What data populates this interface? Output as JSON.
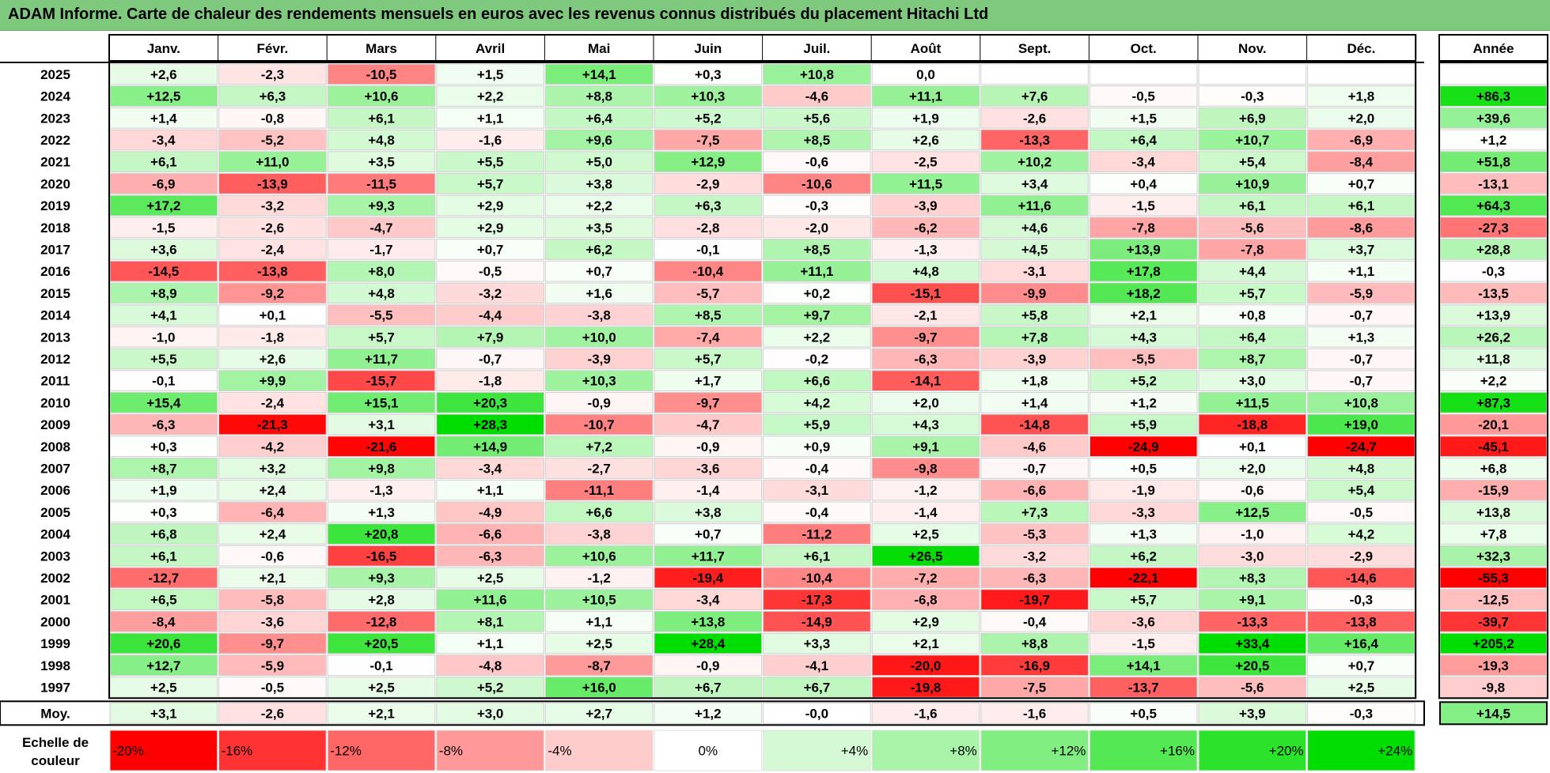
{
  "title": "ADAM Informe. Carte de chaleur des rendements mensuels en euros avec les revenus connus distribués du placement Hitachi Ltd",
  "chart_data": {
    "type": "heatmap",
    "months": [
      "Janv.",
      "Févr.",
      "Mars",
      "Avril",
      "Mai",
      "Juin",
      "Juil.",
      "Août",
      "Sept.",
      "Oct.",
      "Nov.",
      "Déc."
    ],
    "year_header": "Année",
    "rows": [
      {
        "year": "2025",
        "values": [
          "+2,6",
          "-2,3",
          "-10,5",
          "+1,5",
          "+14,1",
          "+0,3",
          "+10,8",
          "0,0",
          "",
          "",
          "",
          ""
        ],
        "annual": ""
      },
      {
        "year": "2024",
        "values": [
          "+12,5",
          "+6,3",
          "+10,6",
          "+2,2",
          "+8,8",
          "+10,3",
          "-4,6",
          "+11,1",
          "+7,6",
          "-0,5",
          "-0,3",
          "+1,8"
        ],
        "annual": "+86,3"
      },
      {
        "year": "2023",
        "values": [
          "+1,4",
          "-0,8",
          "+6,1",
          "+1,1",
          "+6,4",
          "+5,2",
          "+5,6",
          "+1,9",
          "-2,6",
          "+1,5",
          "+6,9",
          "+2,0"
        ],
        "annual": "+39,6"
      },
      {
        "year": "2022",
        "values": [
          "-3,4",
          "-5,2",
          "+4,8",
          "-1,6",
          "+9,6",
          "-7,5",
          "+8,5",
          "+2,6",
          "-13,3",
          "+6,4",
          "+10,7",
          "-6,9"
        ],
        "annual": "+1,2"
      },
      {
        "year": "2021",
        "values": [
          "+6,1",
          "+11,0",
          "+3,5",
          "+5,5",
          "+5,0",
          "+12,9",
          "-0,6",
          "-2,5",
          "+10,2",
          "-3,4",
          "+5,4",
          "-8,4"
        ],
        "annual": "+51,8"
      },
      {
        "year": "2020",
        "values": [
          "-6,9",
          "-13,9",
          "-11,5",
          "+5,7",
          "+3,8",
          "-2,9",
          "-10,6",
          "+11,5",
          "+3,4",
          "+0,4",
          "+10,9",
          "+0,7"
        ],
        "annual": "-13,1"
      },
      {
        "year": "2019",
        "values": [
          "+17,2",
          "-3,2",
          "+9,3",
          "+2,9",
          "+2,2",
          "+6,3",
          "-0,3",
          "-3,9",
          "+11,6",
          "-1,5",
          "+6,1",
          "+6,1"
        ],
        "annual": "+64,3"
      },
      {
        "year": "2018",
        "values": [
          "-1,5",
          "-2,6",
          "-4,7",
          "+2,9",
          "+3,5",
          "-2,8",
          "-2,0",
          "-6,2",
          "+4,6",
          "-7,8",
          "-5,6",
          "-8,6"
        ],
        "annual": "-27,3"
      },
      {
        "year": "2017",
        "values": [
          "+3,6",
          "-2,4",
          "-1,7",
          "+0,7",
          "+6,2",
          "-0,1",
          "+8,5",
          "-1,3",
          "+4,5",
          "+13,9",
          "-7,8",
          "+3,7"
        ],
        "annual": "+28,8"
      },
      {
        "year": "2016",
        "values": [
          "-14,5",
          "-13,8",
          "+8,0",
          "-0,5",
          "+0,7",
          "-10,4",
          "+11,1",
          "+4,8",
          "-3,1",
          "+17,8",
          "+4,4",
          "+1,1"
        ],
        "annual": "-0,3"
      },
      {
        "year": "2015",
        "values": [
          "+8,9",
          "-9,2",
          "+4,8",
          "-3,2",
          "+1,6",
          "-5,7",
          "+0,2",
          "-15,1",
          "-9,9",
          "+18,2",
          "+5,7",
          "-5,9"
        ],
        "annual": "-13,5"
      },
      {
        "year": "2014",
        "values": [
          "+4,1",
          "+0,1",
          "-5,5",
          "-4,4",
          "-3,8",
          "+8,5",
          "+9,7",
          "-2,1",
          "+5,8",
          "+2,1",
          "+0,8",
          "-0,7"
        ],
        "annual": "+13,9"
      },
      {
        "year": "2013",
        "values": [
          "-1,0",
          "-1,8",
          "+5,7",
          "+7,9",
          "+10,0",
          "-7,4",
          "+2,2",
          "-9,7",
          "+7,8",
          "+4,3",
          "+6,4",
          "+1,3"
        ],
        "annual": "+26,2"
      },
      {
        "year": "2012",
        "values": [
          "+5,5",
          "+2,6",
          "+11,7",
          "-0,7",
          "-3,9",
          "+5,7",
          "-0,2",
          "-6,3",
          "-3,9",
          "-5,5",
          "+8,7",
          "-0,7"
        ],
        "annual": "+11,8"
      },
      {
        "year": "2011",
        "values": [
          "-0,1",
          "+9,9",
          "-15,7",
          "-1,8",
          "+10,3",
          "+1,7",
          "+6,6",
          "-14,1",
          "+1,8",
          "+5,2",
          "+3,0",
          "-0,7"
        ],
        "annual": "+2,2"
      },
      {
        "year": "2010",
        "values": [
          "+15,4",
          "-2,4",
          "+15,1",
          "+20,3",
          "-0,9",
          "-9,7",
          "+4,2",
          "+2,0",
          "+1,4",
          "+1,2",
          "+11,5",
          "+10,8"
        ],
        "annual": "+87,3"
      },
      {
        "year": "2009",
        "values": [
          "-6,3",
          "-21,3",
          "+3,1",
          "+28,3",
          "-10,7",
          "-4,7",
          "+5,9",
          "+4,3",
          "-14,8",
          "+5,9",
          "-18,8",
          "+19,0"
        ],
        "annual": "-20,1"
      },
      {
        "year": "2008",
        "values": [
          "+0,3",
          "-4,2",
          "-21,6",
          "+14,9",
          "+7,2",
          "-0,9",
          "+0,9",
          "+9,1",
          "-4,6",
          "-24,9",
          "+0,1",
          "-24,7"
        ],
        "annual": "-45,1"
      },
      {
        "year": "2007",
        "values": [
          "+8,7",
          "+3,2",
          "+9,8",
          "-3,4",
          "-2,7",
          "-3,6",
          "-0,4",
          "-9,8",
          "-0,7",
          "+0,5",
          "+2,0",
          "+4,8"
        ],
        "annual": "+6,8"
      },
      {
        "year": "2006",
        "values": [
          "+1,9",
          "+2,4",
          "-1,3",
          "+1,1",
          "-11,1",
          "-1,4",
          "-3,1",
          "-1,2",
          "-6,6",
          "-1,9",
          "-0,6",
          "+5,4"
        ],
        "annual": "-15,9"
      },
      {
        "year": "2005",
        "values": [
          "+0,3",
          "-6,4",
          "+1,3",
          "-4,9",
          "+6,6",
          "+3,8",
          "-0,4",
          "-1,4",
          "+7,3",
          "-3,3",
          "+12,5",
          "-0,5"
        ],
        "annual": "+13,8"
      },
      {
        "year": "2004",
        "values": [
          "+6,8",
          "+2,4",
          "+20,8",
          "-6,6",
          "-3,8",
          "+0,7",
          "-11,2",
          "+2,5",
          "-5,3",
          "+1,3",
          "-1,0",
          "+4,2"
        ],
        "annual": "+7,8"
      },
      {
        "year": "2003",
        "values": [
          "+6,1",
          "-0,6",
          "-16,5",
          "-6,3",
          "+10,6",
          "+11,7",
          "+6,1",
          "+26,5",
          "-3,2",
          "+6,2",
          "-3,0",
          "-2,9"
        ],
        "annual": "+32,3"
      },
      {
        "year": "2002",
        "values": [
          "-12,7",
          "+2,1",
          "+9,3",
          "+2,5",
          "-1,2",
          "-19,4",
          "-10,4",
          "-7,2",
          "-6,3",
          "-22,1",
          "+8,3",
          "-14,6"
        ],
        "annual": "-55,3"
      },
      {
        "year": "2001",
        "values": [
          "+6,5",
          "-5,8",
          "+2,8",
          "+11,6",
          "+10,5",
          "-3,4",
          "-17,3",
          "-6,8",
          "-19,7",
          "+5,7",
          "+9,1",
          "-0,3"
        ],
        "annual": "-12,5"
      },
      {
        "year": "2000",
        "values": [
          "-8,4",
          "-3,6",
          "-12,8",
          "+8,1",
          "+1,1",
          "+13,8",
          "-14,9",
          "+2,9",
          "-0,4",
          "-3,6",
          "-13,3",
          "-13,8"
        ],
        "annual": "-39,7"
      },
      {
        "year": "1999",
        "values": [
          "+20,6",
          "-9,7",
          "+20,5",
          "+1,1",
          "+2,5",
          "+28,4",
          "+3,3",
          "+2,1",
          "+8,8",
          "-1,5",
          "+33,4",
          "+16,4"
        ],
        "annual": "+205,2"
      },
      {
        "year": "1998",
        "values": [
          "+12,7",
          "-5,9",
          "-0,1",
          "-4,8",
          "-8,7",
          "-0,9",
          "-4,1",
          "-20,0",
          "-16,9",
          "+14,1",
          "+20,5",
          "+0,7"
        ],
        "annual": "-19,3"
      },
      {
        "year": "1997",
        "values": [
          "+2,5",
          "-0,5",
          "+2,5",
          "+5,2",
          "+16,0",
          "+6,7",
          "+6,7",
          "-19,8",
          "-7,5",
          "-13,7",
          "-5,6",
          "+2,5"
        ],
        "annual": "-9,8"
      }
    ],
    "average": {
      "label": "Moy.",
      "values": [
        "+3,1",
        "-2,6",
        "+2,1",
        "+3,0",
        "+2,7",
        "+1,2",
        "-0,0",
        "-1,6",
        "-1,6",
        "+0,5",
        "+3,9",
        "-0,3"
      ],
      "annual": "+14,5"
    },
    "scale": {
      "label": "Echelle de couleur",
      "stops": [
        {
          "label": "-20%",
          "value": -20,
          "align": "left"
        },
        {
          "label": "-16%",
          "value": -16,
          "align": "left"
        },
        {
          "label": "-12%",
          "value": -12,
          "align": "left"
        },
        {
          "label": "-8%",
          "value": -8,
          "align": "left"
        },
        {
          "label": "-4%",
          "value": -4,
          "align": "left"
        },
        {
          "label": "0%",
          "value": 0,
          "align": "center"
        },
        {
          "label": "+4%",
          "value": 4,
          "align": "right"
        },
        {
          "label": "+8%",
          "value": 8,
          "align": "right"
        },
        {
          "label": "+12%",
          "value": 12,
          "align": "right"
        },
        {
          "label": "+16%",
          "value": 16,
          "align": "right"
        },
        {
          "label": "+20%",
          "value": 20,
          "align": "right"
        },
        {
          "label": "+24%",
          "value": 24,
          "align": "right"
        }
      ]
    },
    "colors": {
      "negative": "#ff0000",
      "zero": "#ffffff",
      "positive": "#00dd00",
      "title_bar": "#7fc97f"
    }
  }
}
